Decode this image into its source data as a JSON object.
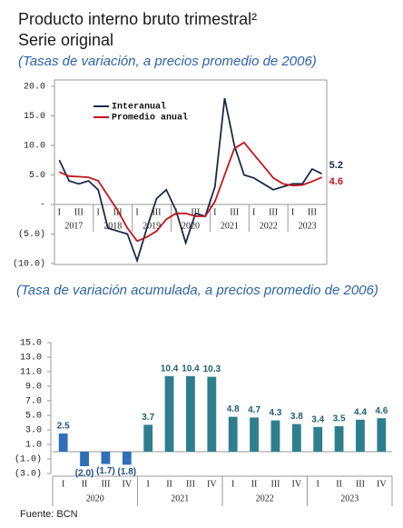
{
  "chart_data": [
    {
      "type": "line",
      "title": "Producto interno bruto trimestral²",
      "subtitle": "Serie original",
      "caption": "(Tasas de variación, a precios promedio de 2006)",
      "categories": [
        "I",
        null,
        "III",
        null,
        "I",
        null,
        "III",
        null,
        "I",
        null,
        "III",
        null,
        "I",
        null,
        "III",
        null,
        "I",
        null,
        "III",
        null,
        "I",
        null,
        "III",
        null,
        "I",
        null,
        "III",
        null
      ],
      "groups": [
        "2017",
        "2018",
        "2019",
        "2020",
        "2021",
        "2022",
        "2023"
      ],
      "series": [
        {
          "name": "Interanual",
          "color": "#1b2a4a",
          "values": [
            7.5,
            4.0,
            3.5,
            4.0,
            2.5,
            -4.0,
            -4.5,
            -5.0,
            -9.5,
            -4.0,
            1.0,
            2.5,
            -1.0,
            -6.5,
            -1.5,
            -2.0,
            3.0,
            18.0,
            10.0,
            5.0,
            4.5,
            3.5,
            2.5,
            3.0,
            3.5,
            3.5,
            6.0,
            5.2
          ]
        },
        {
          "name": "Promedio anual",
          "color": "#c0161b",
          "values": [
            5.5,
            4.8,
            4.7,
            4.6,
            4.0,
            1.5,
            -1.0,
            -4.0,
            -6.2,
            -5.5,
            -4.5,
            -2.5,
            -1.5,
            -1.5,
            -2.0,
            -2.0,
            0.5,
            5.0,
            9.5,
            10.5,
            8.5,
            6.5,
            4.5,
            3.5,
            3.2,
            3.3,
            3.9,
            4.6
          ]
        }
      ],
      "ylim": [
        -10,
        20
      ],
      "yticks": [
        {
          "value": -10,
          "label": "(10.0)"
        },
        {
          "value": -5,
          "label": "(5.0)"
        },
        {
          "value": 0,
          "label": "-"
        },
        {
          "value": 5,
          "label": "5.0"
        },
        {
          "value": 10,
          "label": "10.0"
        },
        {
          "value": 15,
          "label": "15.0"
        },
        {
          "value": 20,
          "label": "20.0"
        }
      ]
    },
    {
      "type": "bar",
      "title": "(Tasa de variación acumulada, a precios promedio de 2006)",
      "categories": [
        "I",
        "II",
        "III",
        "IV",
        "I",
        "II",
        "III",
        "IV",
        "I",
        "II",
        "III",
        "IV",
        "I",
        "II",
        "III",
        "IV"
      ],
      "groups": [
        "2020",
        "2021",
        "2022",
        "2023"
      ],
      "values": [
        2.5,
        -2.0,
        -1.7,
        -1.8,
        3.7,
        10.4,
        10.4,
        10.3,
        4.8,
        4.7,
        4.3,
        3.8,
        3.4,
        3.5,
        4.4,
        4.6
      ],
      "value_labels": [
        "2.5",
        "(2.0)",
        "(1.7)",
        "(1.8)",
        "3.7",
        "10.4",
        "10.4",
        "10.3",
        "4.8",
        "4.7",
        "4.3",
        "3.8",
        "3.4",
        "3.5",
        "4.4",
        "4.6"
      ],
      "colors": [
        "#2f6fb8",
        "#2f6fb8",
        "#2f6fb8",
        "#2f6fb8",
        "#2e7f8e",
        "#2e7f8e",
        "#2e7f8e",
        "#2e7f8e",
        "#2e7f8e",
        "#2e7f8e",
        "#2e7f8e",
        "#2e7f8e",
        "#2e7f8e",
        "#2e7f8e",
        "#2e7f8e",
        "#2e7f8e"
      ],
      "ylim": [
        -3,
        15
      ],
      "yticks": [
        {
          "value": -3,
          "label": "(3.0)"
        },
        {
          "value": -1,
          "label": "(1.0)"
        },
        {
          "value": 1,
          "label": "1.0"
        },
        {
          "value": 3,
          "label": "3.0"
        },
        {
          "value": 5,
          "label": "5.0"
        },
        {
          "value": 7,
          "label": "7.0"
        },
        {
          "value": 9,
          "label": "9.0"
        },
        {
          "value": 11,
          "label": "11.0"
        },
        {
          "value": 13,
          "label": "13.0"
        },
        {
          "value": 15,
          "label": "15.0"
        }
      ],
      "source": "Fuente: BCN"
    }
  ]
}
